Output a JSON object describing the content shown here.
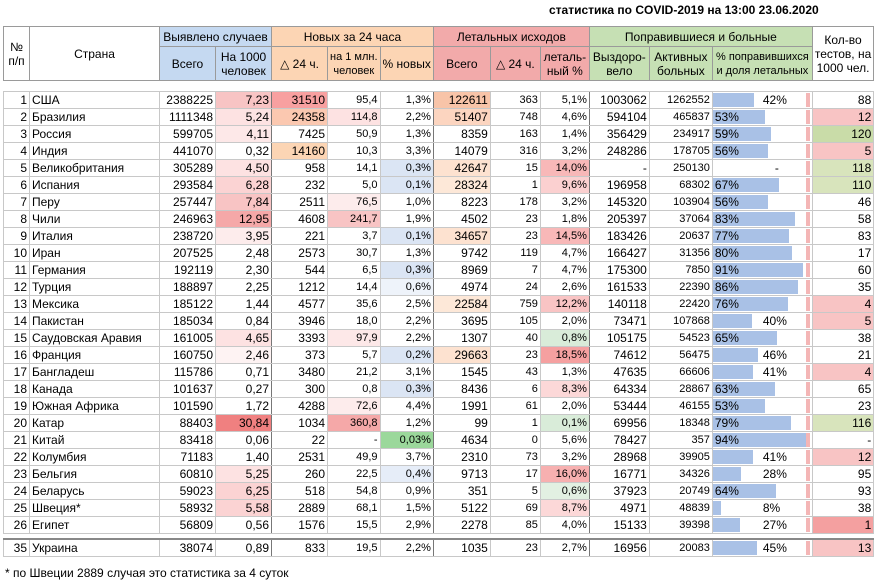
{
  "title": "статистика по COVID-2019 на 13:00 23.06.2020",
  "footnote": "* по Швеции 2889 случая это статистика за 4 суток",
  "headers": {
    "num": "№",
    "num2": "п/п",
    "country": "Страна",
    "detected": "Выявлено случаев",
    "new24": "Новых за 24 часа",
    "deaths": "Летальных исходов",
    "recovered": "Поправившиеся и больные",
    "tests": "Кол-во",
    "tests2": "тестов, на",
    "tests3": "1000 чел.",
    "total": "Всего",
    "per1000a": "На 1000",
    "per1000b": "человек",
    "delta24": "△ 24 ч.",
    "per1mA": "на 1 млн.",
    "per1mB": "человек",
    "pctNew": "% новых",
    "deathsTotal": "Всего",
    "deathsDelta": "△ 24 ч.",
    "lethalA": "леталь-",
    "lethalB": "ный %",
    "recA": "Выздоро-",
    "recB": "вело",
    "activeA": "Активных",
    "activeB": "больных",
    "pctRecA": "% поправившихся",
    "pctRecB": "и доля летальных"
  },
  "rows": [
    {
      "n": "1",
      "country": "США",
      "total": "2388225",
      "per1000": "7,23",
      "d24": "31510",
      "per1m": "95,4",
      "pct": "1,3%",
      "deaths": "122611",
      "dd": "363",
      "leth": "5,1%",
      "rec": "1003062",
      "active": "1262552",
      "recpct": "42%",
      "recfrac": 0.42,
      "tests": "88"
    },
    {
      "n": "2",
      "country": "Бразилия",
      "total": "1111348",
      "per1000": "5,24",
      "d24": "24358",
      "per1m": "114,8",
      "pct": "2,2%",
      "deaths": "51407",
      "dd": "748",
      "leth": "4,6%",
      "rec": "594104",
      "active": "465837",
      "recpct": "53%",
      "recfrac": 0.53,
      "tests": "12"
    },
    {
      "n": "3",
      "country": "Россия",
      "total": "599705",
      "per1000": "4,11",
      "d24": "7425",
      "per1m": "50,9",
      "pct": "1,3%",
      "deaths": "8359",
      "dd": "163",
      "leth": "1,4%",
      "rec": "356429",
      "active": "234917",
      "recpct": "59%",
      "recfrac": 0.59,
      "tests": "120"
    },
    {
      "n": "4",
      "country": "Индия",
      "total": "441070",
      "per1000": "0,32",
      "d24": "14160",
      "per1m": "10,3",
      "pct": "3,3%",
      "deaths": "14079",
      "dd": "316",
      "leth": "3,2%",
      "rec": "248286",
      "active": "178705",
      "recpct": "56%",
      "recfrac": 0.56,
      "tests": "5"
    },
    {
      "n": "5",
      "country": "Великобритания",
      "total": "305289",
      "per1000": "4,50",
      "d24": "958",
      "per1m": "14,1",
      "pct": "0,3%",
      "deaths": "42647",
      "dd": "15",
      "leth": "14,0%",
      "rec": "-",
      "active": "250130",
      "recpct": "-",
      "recfrac": 0,
      "tests": "118"
    },
    {
      "n": "6",
      "country": "Испания",
      "total": "293584",
      "per1000": "6,28",
      "d24": "232",
      "per1m": "5,0",
      "pct": "0,1%",
      "deaths": "28324",
      "dd": "1",
      "leth": "9,6%",
      "rec": "196958",
      "active": "68302",
      "recpct": "67%",
      "recfrac": 0.67,
      "tests": "110"
    },
    {
      "n": "7",
      "country": "Перу",
      "total": "257447",
      "per1000": "7,84",
      "d24": "2511",
      "per1m": "76,5",
      "pct": "1,0%",
      "deaths": "8223",
      "dd": "178",
      "leth": "3,2%",
      "rec": "145320",
      "active": "103904",
      "recpct": "56%",
      "recfrac": 0.56,
      "tests": "46"
    },
    {
      "n": "8",
      "country": "Чили",
      "total": "246963",
      "per1000": "12,95",
      "d24": "4608",
      "per1m": "241,7",
      "pct": "1,9%",
      "deaths": "4502",
      "dd": "23",
      "leth": "1,8%",
      "rec": "205397",
      "active": "37064",
      "recpct": "83%",
      "recfrac": 0.83,
      "tests": "58"
    },
    {
      "n": "9",
      "country": "Италия",
      "total": "238720",
      "per1000": "3,95",
      "d24": "221",
      "per1m": "3,7",
      "pct": "0,1%",
      "deaths": "34657",
      "dd": "23",
      "leth": "14,5%",
      "rec": "183426",
      "active": "20637",
      "recpct": "77%",
      "recfrac": 0.77,
      "tests": "83"
    },
    {
      "n": "10",
      "country": "Иран",
      "total": "207525",
      "per1000": "2,48",
      "d24": "2573",
      "per1m": "30,7",
      "pct": "1,3%",
      "deaths": "9742",
      "dd": "119",
      "leth": "4,7%",
      "rec": "166427",
      "active": "31356",
      "recpct": "80%",
      "recfrac": 0.8,
      "tests": "17"
    },
    {
      "n": "11",
      "country": "Германия",
      "total": "192119",
      "per1000": "2,30",
      "d24": "544",
      "per1m": "6,5",
      "pct": "0,3%",
      "deaths": "8969",
      "dd": "7",
      "leth": "4,7%",
      "rec": "175300",
      "active": "7850",
      "recpct": "91%",
      "recfrac": 0.91,
      "tests": "60"
    },
    {
      "n": "12",
      "country": "Турция",
      "total": "188897",
      "per1000": "2,25",
      "d24": "1212",
      "per1m": "14,4",
      "pct": "0,6%",
      "deaths": "4974",
      "dd": "24",
      "leth": "2,6%",
      "rec": "161533",
      "active": "22390",
      "recpct": "86%",
      "recfrac": 0.86,
      "tests": "35"
    },
    {
      "n": "13",
      "country": "Мексика",
      "total": "185122",
      "per1000": "1,44",
      "d24": "4577",
      "per1m": "35,6",
      "pct": "2,5%",
      "deaths": "22584",
      "dd": "759",
      "leth": "12,2%",
      "rec": "140118",
      "active": "22420",
      "recpct": "76%",
      "recfrac": 0.76,
      "tests": "4"
    },
    {
      "n": "14",
      "country": "Пакистан",
      "total": "185034",
      "per1000": "0,84",
      "d24": "3946",
      "per1m": "18,0",
      "pct": "2,2%",
      "deaths": "3695",
      "dd": "105",
      "leth": "2,0%",
      "rec": "73471",
      "active": "107868",
      "recpct": "40%",
      "recfrac": 0.4,
      "tests": "5"
    },
    {
      "n": "15",
      "country": "Саудовская Аравия",
      "total": "161005",
      "per1000": "4,65",
      "d24": "3393",
      "per1m": "97,9",
      "pct": "2,2%",
      "deaths": "1307",
      "dd": "40",
      "leth": "0,8%",
      "rec": "105175",
      "active": "54523",
      "recpct": "65%",
      "recfrac": 0.65,
      "tests": "38"
    },
    {
      "n": "16",
      "country": "Франция",
      "total": "160750",
      "per1000": "2,46",
      "d24": "373",
      "per1m": "5,7",
      "pct": "0,2%",
      "deaths": "29663",
      "dd": "23",
      "leth": "18,5%",
      "rec": "74612",
      "active": "56475",
      "recpct": "46%",
      "recfrac": 0.46,
      "tests": "21"
    },
    {
      "n": "17",
      "country": "Бангладеш",
      "total": "115786",
      "per1000": "0,71",
      "d24": "3480",
      "per1m": "21,2",
      "pct": "3,1%",
      "deaths": "1545",
      "dd": "43",
      "leth": "1,3%",
      "rec": "47635",
      "active": "66606",
      "recpct": "41%",
      "recfrac": 0.41,
      "tests": "4"
    },
    {
      "n": "18",
      "country": "Канада",
      "total": "101637",
      "per1000": "0,27",
      "d24": "300",
      "per1m": "0,8",
      "pct": "0,3%",
      "deaths": "8436",
      "dd": "6",
      "leth": "8,3%",
      "rec": "64334",
      "active": "28867",
      "recpct": "63%",
      "recfrac": 0.63,
      "tests": "65"
    },
    {
      "n": "19",
      "country": "Южная Африка",
      "total": "101590",
      "per1000": "1,72",
      "d24": "4288",
      "per1m": "72,6",
      "pct": "4,4%",
      "deaths": "1991",
      "dd": "61",
      "leth": "2,0%",
      "rec": "53444",
      "active": "46155",
      "recpct": "53%",
      "recfrac": 0.53,
      "tests": "23"
    },
    {
      "n": "20",
      "country": "Катар",
      "total": "88403",
      "per1000": "30,84",
      "d24": "1034",
      "per1m": "360,8",
      "pct": "1,2%",
      "deaths": "99",
      "dd": "1",
      "leth": "0,1%",
      "rec": "69956",
      "active": "18348",
      "recpct": "79%",
      "recfrac": 0.79,
      "tests": "116"
    },
    {
      "n": "21",
      "country": "Китай",
      "total": "83418",
      "per1000": "0,06",
      "d24": "22",
      "per1m": "-",
      "pct": "0,03%",
      "deaths": "4634",
      "dd": "0",
      "leth": "5,6%",
      "rec": "78427",
      "active": "357",
      "recpct": "94%",
      "recfrac": 0.94,
      "tests": "-"
    },
    {
      "n": "22",
      "country": "Колумбия",
      "total": "71183",
      "per1000": "1,40",
      "d24": "2531",
      "per1m": "49,9",
      "pct": "3,7%",
      "deaths": "2310",
      "dd": "73",
      "leth": "3,2%",
      "rec": "28968",
      "active": "39905",
      "recpct": "41%",
      "recfrac": 0.41,
      "tests": "12"
    },
    {
      "n": "23",
      "country": "Бельгия",
      "total": "60810",
      "per1000": "5,25",
      "d24": "260",
      "per1m": "22,5",
      "pct": "0,4%",
      "deaths": "9713",
      "dd": "17",
      "leth": "16,0%",
      "rec": "16771",
      "active": "34326",
      "recpct": "28%",
      "recfrac": 0.28,
      "tests": "95"
    },
    {
      "n": "24",
      "country": "Беларусь",
      "total": "59023",
      "per1000": "6,25",
      "d24": "518",
      "per1m": "54,8",
      "pct": "0,9%",
      "deaths": "351",
      "dd": "5",
      "leth": "0,6%",
      "rec": "37923",
      "active": "20749",
      "recpct": "64%",
      "recfrac": 0.64,
      "tests": "93"
    },
    {
      "n": "25",
      "country": "Швеция*",
      "total": "58932",
      "per1000": "5,58",
      "d24": "2889",
      "per1m": "68,1",
      "pct": "1,5%",
      "deaths": "5122",
      "dd": "69",
      "leth": "8,7%",
      "rec": "4971",
      "active": "48839",
      "recpct": "8%",
      "recfrac": 0.08,
      "tests": "38"
    },
    {
      "n": "26",
      "country": "Египет",
      "total": "56809",
      "per1000": "0,56",
      "d24": "1576",
      "per1m": "15,5",
      "pct": "2,9%",
      "deaths": "2278",
      "dd": "85",
      "leth": "4,0%",
      "rec": "15133",
      "active": "39398",
      "recpct": "27%",
      "recfrac": 0.27,
      "tests": "1"
    }
  ],
  "ukraine": {
    "n": "35",
    "country": "Украина",
    "total": "38074",
    "per1000": "0,89",
    "d24": "833",
    "per1m": "19,5",
    "pct": "2,2%",
    "deaths": "1035",
    "dd": "23",
    "leth": "2,7%",
    "rec": "16956",
    "active": "20083",
    "recpct": "45%",
    "recfrac": 0.45,
    "tests": "13"
  },
  "colors": {
    "hdr_detected": "#c5d9f1",
    "hdr_new": "#fcd5b4",
    "hdr_deaths": "#f2aaaa",
    "hdr_recovered": "#c6e0b4",
    "bar": "#a9c1e6",
    "tests_green": "#d8e4bc",
    "tests_red": "#f4b6b6"
  }
}
